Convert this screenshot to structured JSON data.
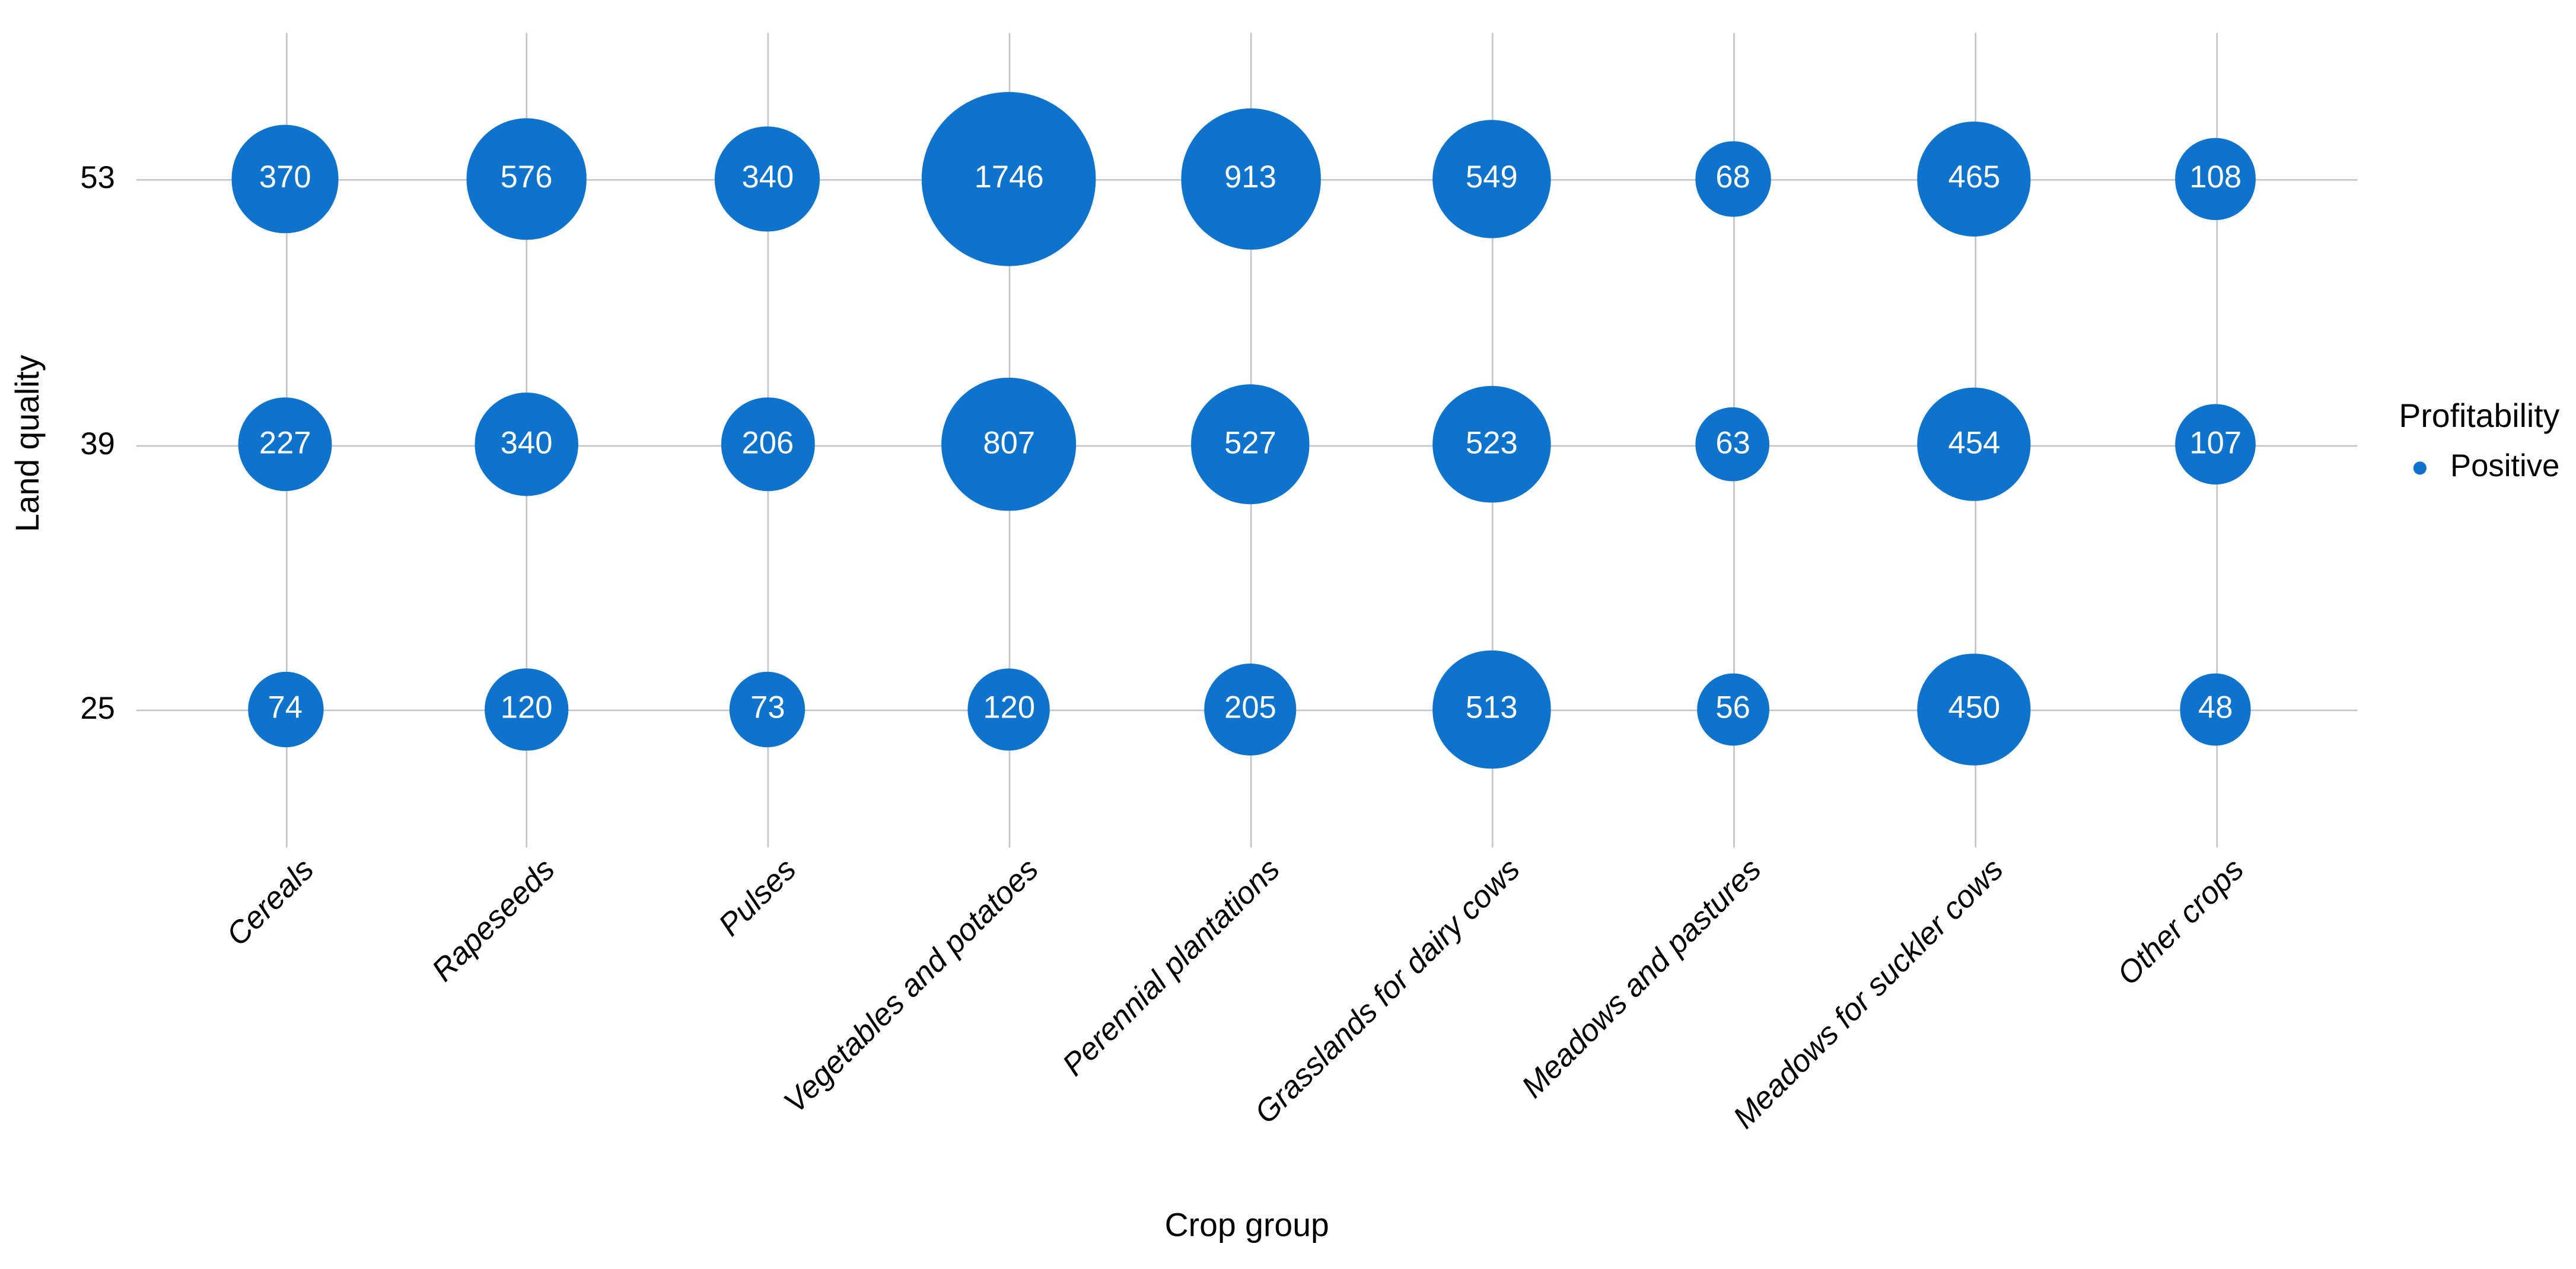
{
  "chart_data": {
    "type": "scatter",
    "variant": "bubble-grid",
    "title": "",
    "xlabel": "Crop group",
    "ylabel": "Land quality",
    "x_categories": [
      "Cereals",
      "Rapeseeds",
      "Pulses",
      "Vegetables and potatoes",
      "Perennial plantations",
      "Grasslands for dairy cows",
      "Meadows and pastures",
      "Meadows for suckler cows",
      "Other crops"
    ],
    "y_categories": [
      "53",
      "39",
      "25"
    ],
    "series": [
      {
        "name": "53",
        "values": [
          370,
          576,
          340,
          1746,
          913,
          549,
          68,
          465,
          108
        ]
      },
      {
        "name": "39",
        "values": [
          227,
          340,
          206,
          807,
          527,
          523,
          63,
          454,
          107
        ]
      },
      {
        "name": "25",
        "values": [
          74,
          120,
          73,
          120,
          205,
          513,
          56,
          450,
          48
        ]
      }
    ],
    "size_encoding": "bubble area scales with value; every bubble labeled with its value",
    "legend": {
      "title": "Profitability",
      "position": "right",
      "items": [
        {
          "label": "Positive",
          "color": "#0e73cd"
        }
      ]
    },
    "colors": {
      "bubble": "#0e73cd",
      "bubble_label": "#ffffff",
      "grid": "#c6c6c6",
      "text": "#000000",
      "background": "#ffffff"
    },
    "grid": "on",
    "x_tick_rotation": -45,
    "x_tick_style": "italic"
  }
}
